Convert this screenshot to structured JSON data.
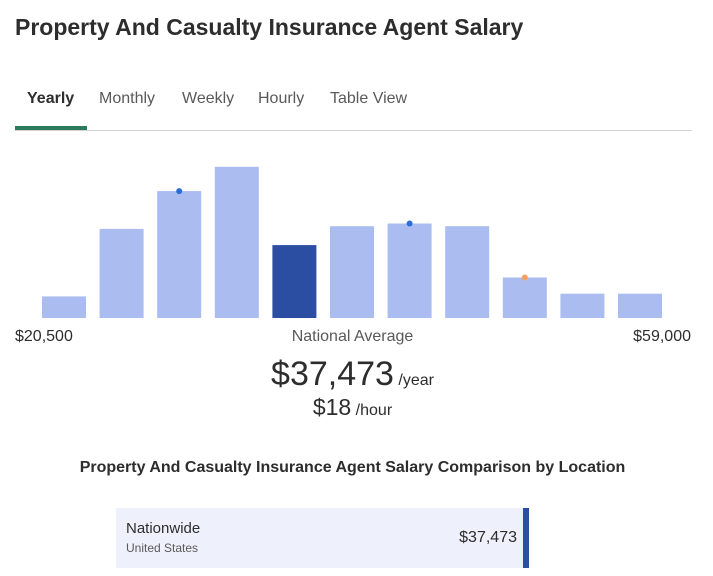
{
  "page": {
    "title": "Property And Casualty Insurance Agent Salary"
  },
  "tabs": [
    {
      "label": "Yearly",
      "active": true
    },
    {
      "label": "Monthly",
      "active": false
    },
    {
      "label": "Weekly",
      "active": false
    },
    {
      "label": "Hourly",
      "active": false
    },
    {
      "label": "Table View",
      "active": false
    }
  ],
  "colors": {
    "bar": "#aabcf0",
    "bar_highlight": "#2b4ea2",
    "dot_blue": "#2b6fd6",
    "dot_orange": "#f4a261",
    "tab_accent": "#2b7a5c"
  },
  "chart_data": {
    "type": "bar",
    "x_range_labels": [
      "$20,500",
      "$59,000"
    ],
    "values": [
      8,
      33,
      47,
      56,
      27,
      34,
      35,
      34,
      15,
      9,
      9
    ],
    "highlight_index": 4,
    "markers": [
      {
        "bar_index": 2,
        "color": "#2b6fd6"
      },
      {
        "bar_index": 6,
        "color": "#2b6fd6"
      },
      {
        "bar_index": 8,
        "color": "#f4a261"
      }
    ]
  },
  "average": {
    "label": "National Average",
    "yearly_value": "$37,473",
    "yearly_unit": "/year",
    "hourly_value": "$18",
    "hourly_unit": "/hour"
  },
  "comparison": {
    "title": "Property And Casualty Insurance Agent Salary Comparison by Location",
    "rows": [
      {
        "name": "Nationwide",
        "sub": "United States",
        "value": "$37,473"
      }
    ]
  }
}
